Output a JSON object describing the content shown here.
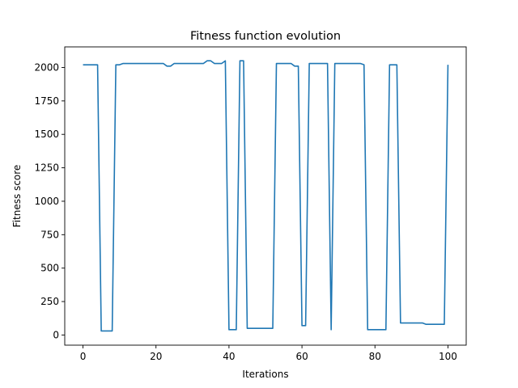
{
  "chart_data": {
    "type": "line",
    "title": "Fitness function evolution",
    "xlabel": "Iterations",
    "ylabel": "Fitness score",
    "xlim": [
      -5,
      105
    ],
    "ylim": [
      -76,
      2154
    ],
    "xticks": [
      0,
      20,
      40,
      60,
      80,
      100
    ],
    "yticks": [
      0,
      250,
      500,
      750,
      1000,
      1250,
      1500,
      1750,
      2000
    ],
    "grid": false,
    "legend": "none",
    "colors": {
      "series": "#1f77b4",
      "axes": "#000000",
      "background": "#ffffff"
    },
    "series": [
      {
        "x": [
          0,
          1,
          2,
          3,
          4,
          5,
          6,
          7,
          8,
          9,
          10,
          11,
          12,
          13,
          14,
          15,
          16,
          17,
          18,
          19,
          20,
          21,
          22,
          23,
          24,
          25,
          26,
          27,
          28,
          29,
          30,
          31,
          32,
          33,
          34,
          35,
          36,
          37,
          38,
          39,
          40,
          41,
          42,
          43,
          44,
          45,
          46,
          47,
          48,
          49,
          50,
          51,
          52,
          53,
          54,
          55,
          56,
          57,
          58,
          59,
          60,
          61,
          62,
          63,
          64,
          65,
          66,
          67,
          68,
          69,
          70,
          71,
          72,
          73,
          74,
          75,
          76,
          77,
          78,
          79,
          80,
          81,
          82,
          83,
          84,
          85,
          86,
          87,
          88,
          89,
          90,
          91,
          92,
          93,
          94,
          95,
          96,
          97,
          98,
          99,
          100
        ],
        "values": [
          2020,
          2020,
          2020,
          2020,
          2020,
          30,
          30,
          30,
          30,
          2020,
          2020,
          2030,
          2030,
          2030,
          2030,
          2030,
          2030,
          2030,
          2030,
          2030,
          2030,
          2030,
          2030,
          2010,
          2010,
          2030,
          2030,
          2030,
          2030,
          2030,
          2030,
          2030,
          2030,
          2030,
          2050,
          2050,
          2030,
          2030,
          2030,
          2050,
          40,
          40,
          40,
          2050,
          2050,
          50,
          50,
          50,
          50,
          50,
          50,
          50,
          50,
          2030,
          2030,
          2030,
          2030,
          2030,
          2010,
          2010,
          70,
          70,
          2030,
          2030,
          2030,
          2030,
          2030,
          2030,
          40,
          2030,
          2030,
          2030,
          2030,
          2030,
          2030,
          2030,
          2030,
          2020,
          40,
          40,
          40,
          40,
          40,
          40,
          2020,
          2020,
          2020,
          90,
          90,
          90,
          90,
          90,
          90,
          90,
          80,
          80,
          80,
          80,
          80,
          80,
          2020
        ]
      }
    ]
  }
}
